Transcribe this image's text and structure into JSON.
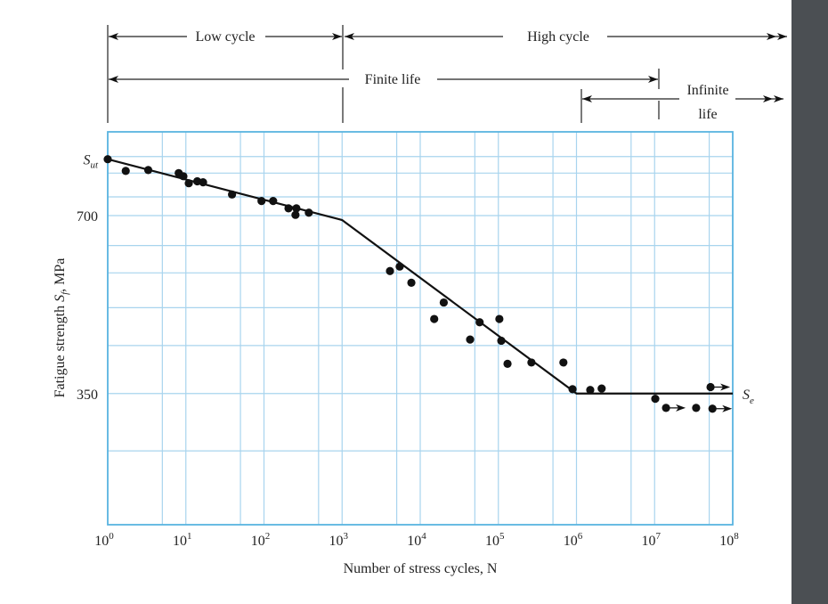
{
  "chart_data": {
    "type": "scatter",
    "xlabel": "Number of stress cycles, N",
    "ylabel": "Fatigue strength S_f, MPa",
    "ylabel_main": "Fatigue strength ",
    "ylabel_sym": "S",
    "ylabel_sub": "f",
    "ylabel_unit": ", MPa",
    "x_scale": "log",
    "y_scale": "log",
    "xlim": [
      1,
      100000000
    ],
    "ylim": [
      210,
      970
    ],
    "grid": true,
    "x_ticks": [
      {
        "value": 1,
        "base": "10",
        "exp": "0"
      },
      {
        "value": 10,
        "base": "10",
        "exp": "1"
      },
      {
        "value": 100,
        "base": "10",
        "exp": "2"
      },
      {
        "value": 1000,
        "base": "10",
        "exp": "3"
      },
      {
        "value": 10000,
        "base": "10",
        "exp": "4"
      },
      {
        "value": 100000,
        "base": "10",
        "exp": "5"
      },
      {
        "value": 1000000,
        "base": "10",
        "exp": "6"
      },
      {
        "value": 10000000,
        "base": "10",
        "exp": "7"
      },
      {
        "value": 100000000,
        "base": "10",
        "exp": "8"
      }
    ],
    "x_minor_grid": [
      5,
      50,
      500,
      5000,
      50000,
      500000,
      5000000,
      50000000
    ],
    "y_ticks": [
      {
        "value": 700,
        "label": "700"
      },
      {
        "value": 350,
        "label": "350"
      }
    ],
    "y_grid": [
      280,
      350,
      422,
      489,
      560,
      623,
      700,
      753,
      826,
      881
    ],
    "sut_label": {
      "sym": "S",
      "sub": "ut",
      "value": 872
    },
    "se_label": {
      "sym": "S",
      "sub": "e",
      "value": 350
    },
    "curve": [
      [
        1,
        872
      ],
      [
        1000,
        688
      ],
      [
        1000000,
        350
      ],
      [
        100000000,
        350
      ]
    ],
    "points": [
      [
        1,
        872
      ],
      [
        1.7,
        833
      ],
      [
        3.3,
        836
      ],
      [
        8.1,
        826
      ],
      [
        9.3,
        816
      ],
      [
        10.9,
        794
      ],
      [
        14,
        800
      ],
      [
        16.6,
        797
      ],
      [
        39,
        760
      ],
      [
        93,
        741
      ],
      [
        131,
        741
      ],
      [
        206,
        720
      ],
      [
        260,
        720
      ],
      [
        253,
        702
      ],
      [
        375,
        708
      ],
      [
        4100,
        564
      ],
      [
        5460,
        574
      ],
      [
        7700,
        539
      ],
      [
        15100,
        468
      ],
      [
        20000,
        499
      ],
      [
        43500,
        432
      ],
      [
        57600,
        462
      ],
      [
        103000,
        468
      ],
      [
        109000,
        430
      ],
      [
        131000,
        393
      ],
      [
        265000,
        395
      ],
      [
        680000,
        395
      ],
      [
        890000,
        356
      ],
      [
        1500000,
        355
      ],
      [
        2100000,
        357
      ],
      [
        10200000,
        343
      ],
      [
        34000000,
        331
      ]
    ],
    "runouts": [
      [
        14000000,
        331
      ],
      [
        55000000,
        330
      ],
      [
        52000000,
        359
      ]
    ],
    "annotations": {
      "low_cycle": "Low cycle",
      "high_cycle": "High cycle",
      "finite_life": "Finite life",
      "infinite_line1": "Infinite",
      "infinite_line2": "life"
    },
    "colors": {
      "grid": "#a8d4ee",
      "axis": "#5ab4e0",
      "ink": "#111111"
    }
  }
}
